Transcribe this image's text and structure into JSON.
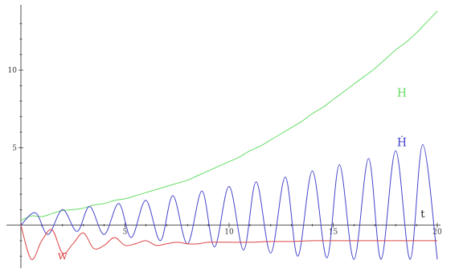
{
  "chart_data": {
    "type": "line",
    "title": "",
    "xlabel": "t",
    "ylabel": "",
    "xlim": [
      0,
      20
    ],
    "ylim": [
      -2.2,
      14
    ],
    "x_ticks": [
      5,
      10,
      15,
      20
    ],
    "x_tick_labels": [
      "5",
      "10",
      "15",
      "20"
    ],
    "y_ticks": [
      5,
      10
    ],
    "y_tick_labels": [
      "5",
      "10"
    ],
    "grid": false,
    "legend": "none",
    "series": [
      {
        "name": "H",
        "color": "#66dd66",
        "x": [
          0,
          0.5,
          1,
          1.5,
          2,
          2.5,
          3,
          3.5,
          4,
          4.5,
          5,
          5.5,
          6,
          6.5,
          7,
          7.5,
          8,
          8.5,
          9,
          9.5,
          10,
          10.5,
          11,
          11.5,
          12,
          12.5,
          13,
          13.5,
          14,
          14.5,
          15,
          15.5,
          16,
          16.5,
          17,
          17.5,
          18,
          18.5,
          19,
          19.5,
          20
        ],
        "values": [
          0.3,
          0.6,
          0.55,
          0.75,
          0.95,
          1.0,
          1.1,
          1.3,
          1.4,
          1.6,
          1.7,
          1.9,
          2.1,
          2.3,
          2.5,
          2.7,
          2.9,
          3.2,
          3.5,
          3.8,
          4.1,
          4.4,
          4.8,
          5.1,
          5.5,
          5.9,
          6.3,
          6.7,
          7.2,
          7.6,
          8.1,
          8.6,
          9.1,
          9.6,
          10.1,
          10.7,
          11.3,
          11.8,
          12.4,
          13.1,
          13.8
        ]
      },
      {
        "name": "Ḣ",
        "color": "#4444cc",
        "x": [
          0,
          0.7,
          1.3,
          2.0,
          2.7,
          3.3,
          4.0,
          4.7,
          5.3,
          6.0,
          6.7,
          7.3,
          8.0,
          8.7,
          9.3,
          10.0,
          10.7,
          11.3,
          12.0,
          12.7,
          13.3,
          14.0,
          14.7,
          15.3,
          16.0,
          16.7,
          17.3,
          18.0,
          18.7,
          19.3,
          20.0
        ],
        "values": [
          0,
          0.8,
          -0.6,
          1.0,
          -0.4,
          1.2,
          -0.6,
          1.4,
          -0.8,
          1.6,
          -1.0,
          1.9,
          -1.2,
          2.2,
          -1.4,
          2.5,
          -1.6,
          2.8,
          -1.8,
          3.1,
          -2.0,
          3.5,
          -2.1,
          3.9,
          -2.2,
          4.3,
          -2.2,
          4.8,
          -2.2,
          5.2,
          -2.2
        ]
      },
      {
        "name": "w",
        "color": "#dd4444",
        "x": [
          0,
          0.5,
          1,
          1.5,
          2,
          2.5,
          3,
          3.5,
          4,
          4.5,
          5,
          5.5,
          6,
          6.5,
          7,
          7.5,
          8,
          8.5,
          9,
          9.5,
          10,
          11,
          12,
          13,
          14,
          15,
          16,
          17,
          18,
          19,
          20
        ],
        "values": [
          0,
          -2.2,
          -1.0,
          -0.3,
          -1.8,
          -1.2,
          -0.5,
          -1.5,
          -1.3,
          -0.8,
          -1.3,
          -1.2,
          -1.0,
          -1.3,
          -1.2,
          -1.1,
          -1.2,
          -1.2,
          -1.1,
          -1.1,
          -1.1,
          -1.1,
          -1.05,
          -1.05,
          -1.0,
          -1.0,
          -1.0,
          -1.0,
          -1.0,
          -1.0,
          -1.0
        ]
      }
    ],
    "annotations": [
      {
        "text": "H",
        "x": 18.3,
        "y": 8.3,
        "color": "#66dd66"
      },
      {
        "text": "Ḣ",
        "x": 18.3,
        "y": 5.1,
        "color": "#4444cc"
      },
      {
        "text": "w",
        "x": 2.0,
        "y": -2.2,
        "color": "#dd4444"
      },
      {
        "text": "t",
        "x": 19.3,
        "y": 0.5,
        "color": "#222222"
      }
    ]
  }
}
